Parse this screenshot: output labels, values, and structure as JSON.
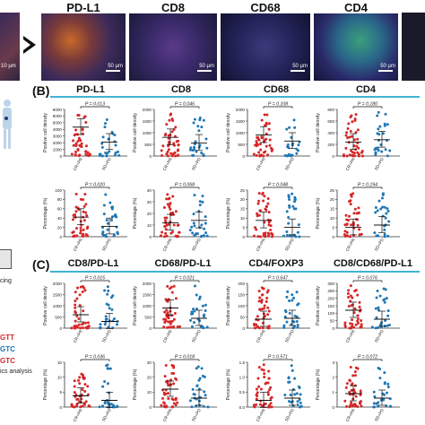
{
  "micro_panels": [
    {
      "label": "PD-L1",
      "scale": "50 µm",
      "tone": "orange"
    },
    {
      "label": "CD8",
      "scale": "50 µm",
      "tone": "purple"
    },
    {
      "label": "CD68",
      "scale": "50 µm",
      "tone": "navy"
    },
    {
      "label": "CD4",
      "scale": "50 µm",
      "tone": "green"
    }
  ],
  "partial_scale": "10 µm",
  "section_b": "(B)",
  "section_c": "(C)",
  "left_text": {
    "cing": "cing",
    "gtt": "GTT",
    "gtc1": "GTC",
    "gtc2": "GTC",
    "analysis": "ics analysis"
  },
  "colors": {
    "red": "#d62728",
    "blue": "#1f77b4",
    "sigline": "#111111"
  },
  "chart_data": [
    {
      "type": "scatter",
      "title": "PD-L1",
      "ylabel": "Positive cell density",
      "yticks": [
        "9000",
        "8000",
        "6000",
        "4000",
        "3000",
        "2000",
        "1000",
        "0"
      ],
      "xticks": [
        "CR+PR",
        "SD+PD"
      ],
      "p": "P = 0.013",
      "means": [
        0.62,
        0.3
      ]
    },
    {
      "type": "scatter",
      "title": "CD8",
      "ylabel": "Positive cell density",
      "yticks": [
        "2000",
        "1500",
        "1000",
        "500",
        "0"
      ],
      "xticks": [
        "CR+PR",
        "SD+PD"
      ],
      "p": "P = 0.046",
      "means": [
        0.4,
        0.28
      ]
    },
    {
      "type": "scatter",
      "title": "CD68",
      "ylabel": "Positive cell density",
      "yticks": [
        "2000",
        "1500",
        "1000",
        "500",
        "0"
      ],
      "xticks": [
        "CR+PR",
        "SD+PD"
      ],
      "p": "P = 0.108",
      "means": [
        0.45,
        0.32
      ]
    },
    {
      "type": "scatter",
      "title": "CD4",
      "ylabel": "Positive cell density",
      "yticks": [
        "800",
        "600",
        "400",
        "200",
        "0"
      ],
      "xticks": [
        "CR+PR",
        "SD+PD"
      ],
      "p": "P = 0.180",
      "means": [
        0.3,
        0.35
      ]
    },
    {
      "type": "scatter",
      "title": "",
      "ylabel": "Percentage (%)",
      "yticks": [
        "100",
        "80",
        "60",
        "40",
        "20",
        "0"
      ],
      "xticks": [
        "CR+PR",
        "SD+PD"
      ],
      "p": "P = 0.020",
      "means": [
        0.42,
        0.22
      ]
    },
    {
      "type": "scatter",
      "title": "",
      "ylabel": "Percentage (%)",
      "yticks": [
        "40",
        "30",
        "20",
        "10",
        "0"
      ],
      "xticks": [
        "CR+PR",
        "SD+PD"
      ],
      "p": "P = 0.068",
      "means": [
        0.3,
        0.35
      ]
    },
    {
      "type": "scatter",
      "title": "",
      "ylabel": "Percentage (%)",
      "yticks": [
        "25",
        "20",
        "15",
        "10",
        "5",
        "0"
      ],
      "xticks": [
        "CR+PR",
        "SD+PD"
      ],
      "p": "P = 0.048",
      "means": [
        0.35,
        0.2
      ]
    },
    {
      "type": "scatter",
      "title": "",
      "ylabel": "Percentage (%)",
      "yticks": [
        "25",
        "20",
        "15",
        "10",
        "5",
        "0"
      ],
      "xticks": [
        "CR+PR",
        "SD+PD"
      ],
      "p": "P = 0.194",
      "means": [
        0.2,
        0.25
      ]
    },
    {
      "type": "scatter",
      "title": "CD8/PD-L1",
      "ylabel": "Positive cell density",
      "yticks": [
        "2000",
        "1500",
        "1000",
        "500",
        "0"
      ],
      "xticks": [
        "CR+PR",
        "SD+PD"
      ],
      "p": "P = 0.015",
      "means": [
        0.3,
        0.15
      ]
    },
    {
      "type": "scatter",
      "title": "CD68/PD-L1",
      "ylabel": "Positive cell density",
      "yticks": [
        "2000",
        "1500",
        "1000",
        "500",
        "0"
      ],
      "xticks": [
        "CR+PR",
        "SD+PD"
      ],
      "p": "P = 0.021",
      "means": [
        0.45,
        0.22
      ]
    },
    {
      "type": "scatter",
      "title": "CD4/FOXP3",
      "ylabel": "Positive cell density",
      "yticks": [
        "200",
        "150",
        "100",
        "50",
        "0"
      ],
      "xticks": [
        "CR+PR",
        "SD+PD"
      ],
      "p": "P = 0.647",
      "means": [
        0.2,
        0.22
      ]
    },
    {
      "type": "scatter",
      "title": "CD8/CD68/PD-L1",
      "ylabel": "Positive cell density",
      "yticks": [
        "300",
        "250",
        "200",
        "150",
        "100",
        "50",
        "0"
      ],
      "xticks": [
        "CR+PR",
        "SD+PD"
      ],
      "p": "P = 0.076",
      "means": [
        0.4,
        0.2
      ]
    },
    {
      "type": "scatter",
      "title": "",
      "ylabel": "Percentage (%)",
      "yticks": [
        "15",
        "10",
        "5",
        "0"
      ],
      "xticks": [
        "CR+PR",
        "SD+PD"
      ],
      "p": "P = 0.036",
      "means": [
        0.25,
        0.15
      ]
    },
    {
      "type": "scatter",
      "title": "",
      "ylabel": "Percentage (%)",
      "yticks": [
        "30",
        "20",
        "10",
        "0"
      ],
      "xticks": [
        "CR+PR",
        "SD+PD"
      ],
      "p": "P = 0.018",
      "means": [
        0.4,
        0.2
      ]
    },
    {
      "type": "scatter",
      "title": "",
      "ylabel": "Percentage (%)",
      "yticks": [
        "1.5",
        "1.0",
        "0.5",
        "0.0"
      ],
      "xticks": [
        "CR+PR",
        "SD+PD"
      ],
      "p": "P = 0.571",
      "means": [
        0.15,
        0.2
      ]
    },
    {
      "type": "scatter",
      "title": "",
      "ylabel": "Percentage (%)",
      "yticks": [
        "3",
        "2",
        "1",
        "0"
      ],
      "xticks": [
        "CR+PR",
        "SD+PD"
      ],
      "p": "P = 0.072",
      "means": [
        0.3,
        0.2
      ]
    }
  ]
}
